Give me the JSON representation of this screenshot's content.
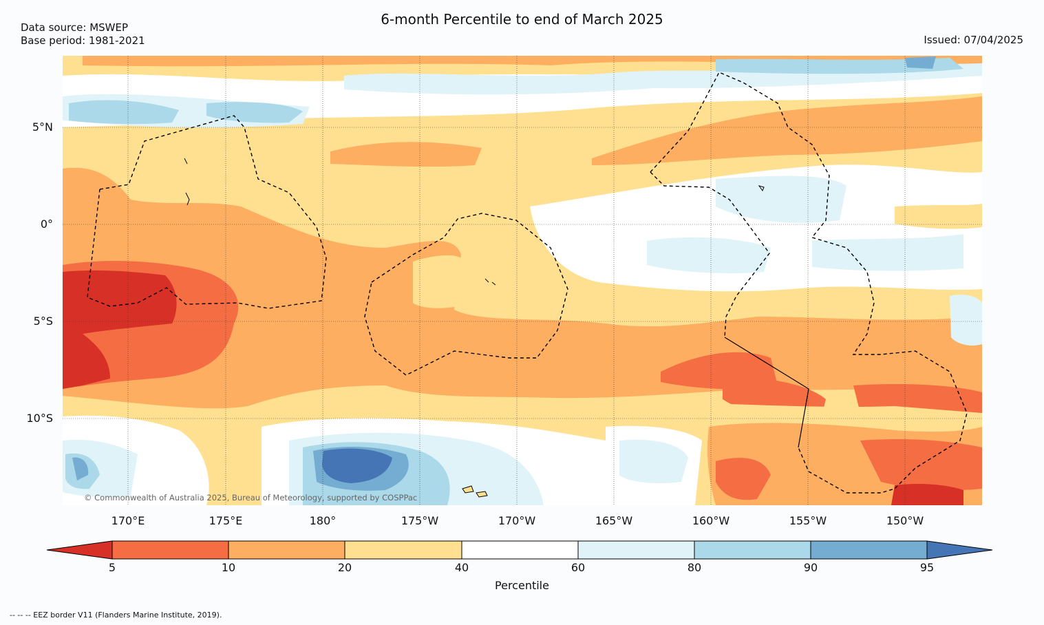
{
  "header": {
    "title": "6-month Percentile to end of March 2025",
    "data_source": "Data source: MSWEP",
    "base_period": "Base period: 1981-2021",
    "issued": "Issued: 07/04/2025"
  },
  "map": {
    "lat_labels": [
      "5°N",
      "0°",
      "5°S",
      "10°S"
    ],
    "lon_labels": [
      "170°E",
      "175°E",
      "180°",
      "175°W",
      "170°W",
      "165°W",
      "160°W",
      "155°W",
      "150°W"
    ],
    "copyright": "© Commonwealth of Australia 2025, Bureau of Meteorology, supported by COSPPac"
  },
  "colorbar": {
    "label": "Percentile",
    "ticks": [
      "5",
      "10",
      "20",
      "40",
      "60",
      "80",
      "90",
      "95"
    ],
    "colors": {
      "below_5": "#d73027",
      "p5_10": "#f46d43",
      "p10_20": "#fdae61",
      "p20_40": "#fee090",
      "p40_60": "#ffffff",
      "p60_80": "#e0f3f8",
      "p80_90": "#abd9e9",
      "p90_95": "#74add1",
      "above_95": "#4575b4"
    }
  },
  "footnote": "--  --  -- EEZ border V11 (Flanders Marine Institute, 2019)."
}
